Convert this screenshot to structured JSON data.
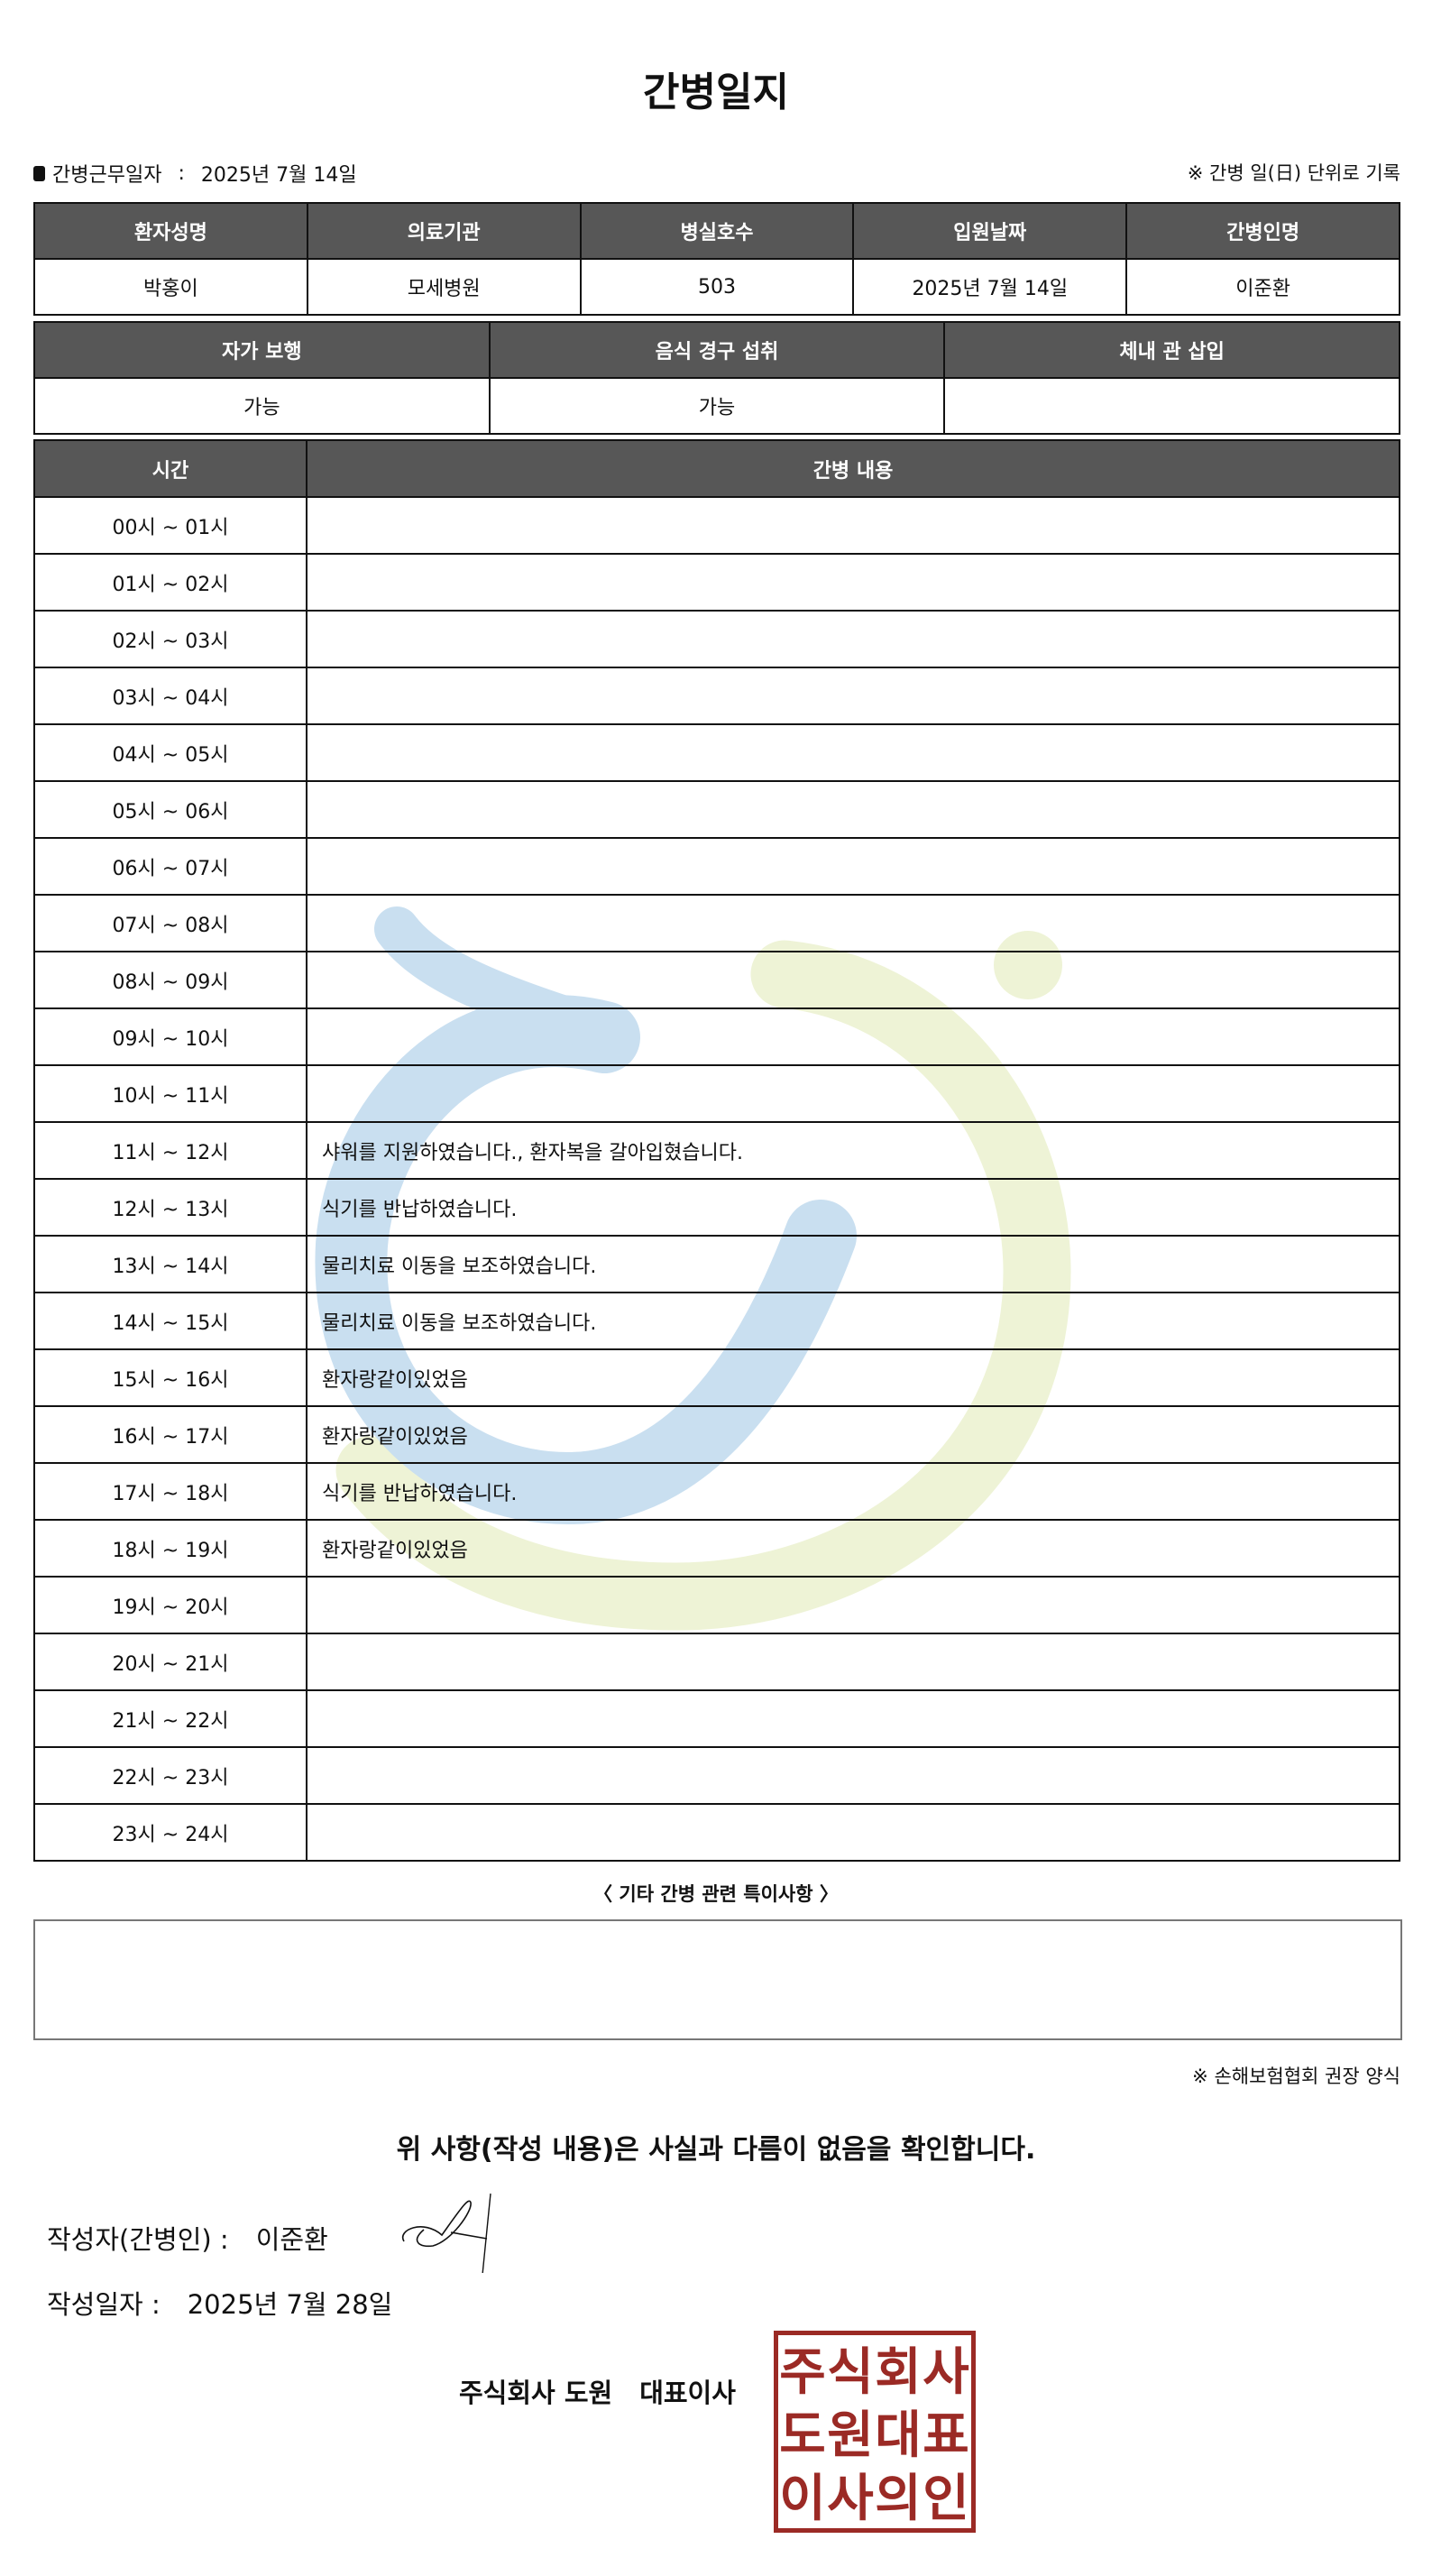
{
  "title": "간병일지",
  "info": {
    "work_date_label": "간병근무일자",
    "separator": ":",
    "work_date": "2025년 7월 14일",
    "note": "※ 간병 일(日) 단위로 기록"
  },
  "patient_table": {
    "headers": [
      "환자성명",
      "의료기관",
      "병실호수",
      "입원날짜",
      "간병인명"
    ],
    "values": [
      "박홍이",
      "모세병원",
      "503",
      "2025년 7월 14일",
      "이준환"
    ]
  },
  "status_table": {
    "headers": [
      "자가 보행",
      "음식 경구 섭취",
      "체내 관 삽입"
    ],
    "values": [
      "가능",
      "가능",
      ""
    ]
  },
  "log_table": {
    "headers": [
      "시간",
      "간병 내용"
    ],
    "rows": [
      {
        "time": "00시 ~ 01시",
        "content": ""
      },
      {
        "time": "01시 ~ 02시",
        "content": ""
      },
      {
        "time": "02시 ~ 03시",
        "content": ""
      },
      {
        "time": "03시 ~ 04시",
        "content": ""
      },
      {
        "time": "04시 ~ 05시",
        "content": ""
      },
      {
        "time": "05시 ~ 06시",
        "content": ""
      },
      {
        "time": "06시 ~ 07시",
        "content": ""
      },
      {
        "time": "07시 ~ 08시",
        "content": ""
      },
      {
        "time": "08시 ~ 09시",
        "content": ""
      },
      {
        "time": "09시 ~ 10시",
        "content": ""
      },
      {
        "time": "10시 ~ 11시",
        "content": ""
      },
      {
        "time": "11시 ~ 12시",
        "content": "샤워를 지원하였습니다., 환자복을 갈아입혔습니다."
      },
      {
        "time": "12시 ~ 13시",
        "content": "식기를 반납하였습니다."
      },
      {
        "time": "13시 ~ 14시",
        "content": "물리치료 이동을 보조하였습니다."
      },
      {
        "time": "14시 ~ 15시",
        "content": "물리치료 이동을 보조하였습니다."
      },
      {
        "time": "15시 ~ 16시",
        "content": "환자랑같이있었음"
      },
      {
        "time": "16시 ~ 17시",
        "content": "환자랑같이있었음"
      },
      {
        "time": "17시 ~ 18시",
        "content": "식기를 반납하였습니다."
      },
      {
        "time": "18시 ~ 19시",
        "content": "환자랑같이있었음"
      },
      {
        "time": "19시 ~ 20시",
        "content": ""
      },
      {
        "time": "20시 ~ 21시",
        "content": ""
      },
      {
        "time": "21시 ~ 22시",
        "content": ""
      },
      {
        "time": "22시 ~ 23시",
        "content": ""
      },
      {
        "time": "23시 ~ 24시",
        "content": ""
      }
    ]
  },
  "etc": {
    "label": "〈 기타 간병 관련 특이사항 〉",
    "content": ""
  },
  "assoc_note": "※ 손해보험협회 권장 양식",
  "confirm": "위 사항(작성 내용)은 사실과 다름이 없음을 확인합니다.",
  "writer": {
    "label": "작성자(간병인) :",
    "name": "이준환"
  },
  "written_date": {
    "label": "작성일자 :",
    "value": "2025년 7월 28일"
  },
  "company": {
    "name": "주식회사 도원",
    "title": "대표이사"
  },
  "seal": {
    "text": "주식회사도원대표이사의인",
    "color": "#9b2a25"
  },
  "watermark_colors": {
    "blue": "#c9dff0",
    "green": "#eef3d6"
  }
}
